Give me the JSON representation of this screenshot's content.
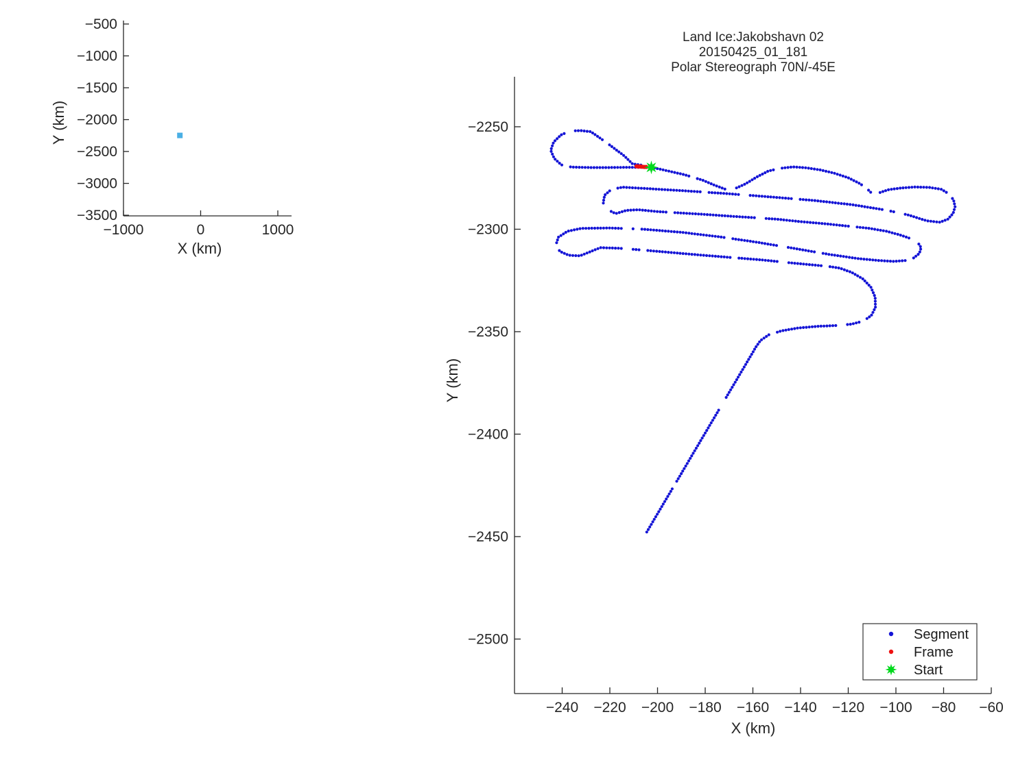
{
  "chart_data": [
    {
      "id": "overview",
      "type": "box-outline",
      "xlabel": "X (km)",
      "ylabel": "Y (km)",
      "xticks": [
        -1000,
        0,
        1000
      ],
      "yticks": [
        -500,
        -1000,
        -1500,
        -2000,
        -2500,
        -3000,
        -3500
      ],
      "xlim": [
        -1000,
        1178
      ],
      "ylim": [
        -446,
        -3510
      ],
      "grid": false,
      "box": {
        "x": [
          -260,
          -60
        ],
        "y": [
          -2226,
          -2527
        ]
      },
      "box_color": "#4aafe4"
    },
    {
      "id": "main",
      "type": "scatter-path",
      "title_lines": [
        "Land Ice:Jakobshavn 02",
        "20150425_01_181",
        "Polar Stereograph 70N/-45E"
      ],
      "xlabel": "X (km)",
      "ylabel": "Y (km)",
      "xticks": [
        -240,
        -220,
        -200,
        -180,
        -160,
        -140,
        -120,
        -100,
        -80,
        -60
      ],
      "yticks": [
        -2250,
        -2300,
        -2350,
        -2400,
        -2450,
        -2500
      ],
      "xlim": [
        -260,
        -60
      ],
      "ylim": [
        -2225.6,
        -2526.6
      ],
      "grid": false,
      "legend": {
        "position": "bottom-right",
        "items": [
          {
            "label": "Segment",
            "marker": "dot",
            "color": "#1414d6"
          },
          {
            "label": "Frame",
            "marker": "dot",
            "color": "#ee1111"
          },
          {
            "label": "Start",
            "marker": "star",
            "color": "#00d91c"
          }
        ]
      },
      "series": [
        {
          "name": "Segment",
          "marker": "dot",
          "color": "#1414d6",
          "paths": [
            [
              [
                -207,
                -2268.7
              ],
              [
                -210.5,
                -2268.1
              ],
              [
                -214,
                -2264.2
              ],
              [
                -219,
                -2259.8
              ],
              [
                -224,
                -2255.6
              ],
              [
                -228,
                -2252.4
              ],
              [
                -232,
                -2251.9
              ],
              [
                -236.5,
                -2252
              ],
              [
                -240.5,
                -2254
              ],
              [
                -243.6,
                -2257.5
              ],
              [
                -244.8,
                -2261.5
              ],
              [
                -243.3,
                -2265.5
              ],
              [
                -240.3,
                -2268.6
              ],
              [
                -236,
                -2269.7
              ],
              [
                -228,
                -2269.9
              ],
              [
                -220,
                -2269.9
              ],
              [
                -212,
                -2269.8
              ],
              [
                -202.5,
                -2269.8
              ]
            ],
            [
              [
                -202.5,
                -2269.8
              ],
              [
                -197,
                -2271.2
              ],
              [
                -189,
                -2273.3
              ],
              [
                -181,
                -2276.1
              ],
              [
                -175.5,
                -2278.8
              ],
              [
                -171.5,
                -2280.5
              ],
              [
                -167.5,
                -2280.2
              ],
              [
                -163,
                -2277.8
              ],
              [
                -158.5,
                -2274.6
              ],
              [
                -153.5,
                -2271.6
              ],
              [
                -148,
                -2270.2
              ],
              [
                -143,
                -2269.6
              ],
              [
                -138,
                -2270
              ],
              [
                -132,
                -2271
              ],
              [
                -126,
                -2272.6
              ],
              [
                -120,
                -2274.9
              ],
              [
                -115,
                -2277.8
              ],
              [
                -111.3,
                -2281.1
              ],
              [
                -109.2,
                -2283.7
              ],
              [
                -106.5,
                -2282
              ],
              [
                -103,
                -2280.7
              ],
              [
                -98,
                -2279.9
              ],
              [
                -92,
                -2279.4
              ],
              [
                -86,
                -2279.6
              ],
              [
                -81,
                -2280.5
              ],
              [
                -77.8,
                -2282.7
              ],
              [
                -75.8,
                -2285.7
              ],
              [
                -75.2,
                -2289
              ],
              [
                -76,
                -2292.3
              ],
              [
                -78.2,
                -2295.1
              ],
              [
                -81.5,
                -2296.6
              ],
              [
                -87,
                -2295.9
              ],
              [
                -95,
                -2293
              ],
              [
                -104,
                -2290.7
              ],
              [
                -118,
                -2288.1
              ],
              [
                -134,
                -2286
              ],
              [
                -152,
                -2284.3
              ],
              [
                -170,
                -2282.7
              ],
              [
                -188,
                -2281.3
              ],
              [
                -204,
                -2280.2
              ],
              [
                -214.5,
                -2279.5
              ],
              [
                -219.3,
                -2280.5
              ],
              [
                -222.2,
                -2283.4
              ],
              [
                -222.8,
                -2287.1
              ],
              [
                -221,
                -2290.4
              ],
              [
                -217.6,
                -2292.4
              ],
              [
                -213,
                -2290.8
              ],
              [
                -208,
                -2290.5
              ],
              [
                -200,
                -2291.4
              ],
              [
                -190,
                -2292.1
              ],
              [
                -181,
                -2292.7
              ],
              [
                -170,
                -2293.6
              ],
              [
                -159,
                -2294.4
              ],
              [
                -150,
                -2295.1
              ],
              [
                -140,
                -2296.3
              ],
              [
                -130,
                -2297.3
              ],
              [
                -120,
                -2298.5
              ],
              [
                -111,
                -2299.6
              ],
              [
                -104,
                -2301
              ],
              [
                -98.5,
                -2302.7
              ],
              [
                -93.5,
                -2304.7
              ],
              [
                -90.8,
                -2306.5
              ],
              [
                -89.4,
                -2309
              ],
              [
                -90.2,
                -2311.8
              ],
              [
                -92.5,
                -2314
              ],
              [
                -96,
                -2315.3
              ],
              [
                -101,
                -2315.7
              ],
              [
                -108,
                -2315.2
              ],
              [
                -116,
                -2314.3
              ],
              [
                -128,
                -2312.3
              ],
              [
                -142,
                -2309.5
              ],
              [
                -158,
                -2306.4
              ],
              [
                -174,
                -2303.7
              ],
              [
                -190,
                -2301.5
              ],
              [
                -206,
                -2300
              ],
              [
                -220,
                -2299.4
              ],
              [
                -232,
                -2299.6
              ],
              [
                -237.8,
                -2301
              ],
              [
                -241.6,
                -2303.9
              ],
              [
                -242.6,
                -2307.6
              ],
              [
                -241,
                -2310.8
              ],
              [
                -237.3,
                -2312.7
              ],
              [
                -232.5,
                -2313
              ],
              [
                -228.3,
                -2311
              ],
              [
                -224,
                -2309
              ],
              [
                -216,
                -2309.3
              ],
              [
                -206,
                -2310.2
              ],
              [
                -194,
                -2311.4
              ],
              [
                -181,
                -2312.7
              ],
              [
                -168,
                -2313.9
              ],
              [
                -156,
                -2315
              ],
              [
                -146,
                -2316.2
              ],
              [
                -136,
                -2317.3
              ],
              [
                -128,
                -2318.2
              ],
              [
                -123.5,
                -2319
              ],
              [
                -118.5,
                -2321.1
              ],
              [
                -113.8,
                -2324.3
              ],
              [
                -110.5,
                -2328.3
              ],
              [
                -108.7,
                -2333.1
              ],
              [
                -108.6,
                -2338.1
              ],
              [
                -110.3,
                -2342.1
              ],
              [
                -113.6,
                -2344.8
              ],
              [
                -118.5,
                -2346.3
              ],
              [
                -125,
                -2347
              ],
              [
                -133,
                -2347.4
              ],
              [
                -141,
                -2348.2
              ],
              [
                -148,
                -2349.6
              ],
              [
                -153.3,
                -2351.5
              ],
              [
                -156.8,
                -2354.3
              ],
              [
                -158.8,
                -2357.6
              ],
              [
                -160.5,
                -2361
              ],
              [
                -205.8,
                -2450.3
              ]
            ]
          ]
        },
        {
          "name": "Frame",
          "marker": "dot",
          "color": "#ee1111",
          "points": [
            [
              -208.8,
              -2269.3
            ],
            [
              -208,
              -2269.4
            ],
            [
              -207.2,
              -2269.4
            ],
            [
              -206.4,
              -2269.5
            ],
            [
              -205.6,
              -2269.6
            ],
            [
              -204.8,
              -2269.6
            ]
          ]
        },
        {
          "name": "Start",
          "marker": "star",
          "color": "#00d91c",
          "points": [
            [
              -202.6,
              -2269.8
            ]
          ]
        }
      ]
    }
  ]
}
